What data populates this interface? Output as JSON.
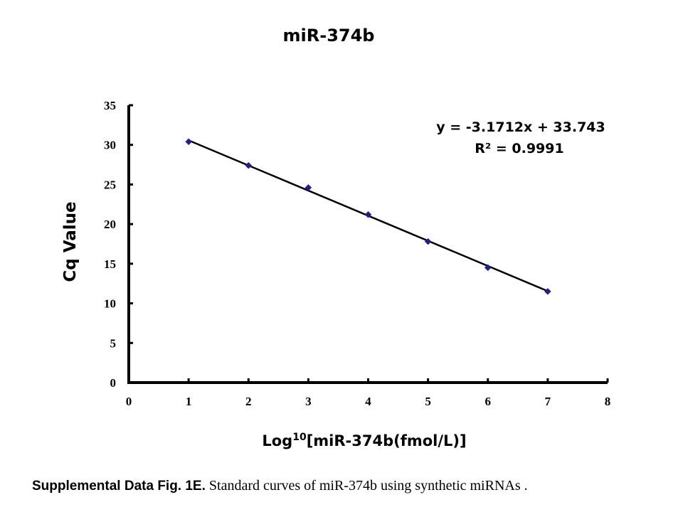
{
  "chart_data": {
    "type": "scatter",
    "title": "miR-374b",
    "xlabel_prefix": "Log",
    "xlabel_sup": "10",
    "xlabel_suffix": "[miR-374b(fmol/L)]",
    "ylabel": "Cq Value",
    "xlim": [
      0,
      8
    ],
    "ylim": [
      0,
      35
    ],
    "xticks": [
      "0",
      "1",
      "2",
      "3",
      "4",
      "5",
      "6",
      "7",
      "8"
    ],
    "yticks": [
      "0",
      "5",
      "10",
      "15",
      "20",
      "25",
      "30",
      "35"
    ],
    "grid": false,
    "series": [
      {
        "x": [
          1,
          2,
          3,
          4,
          5,
          6,
          7
        ],
        "y": [
          30.4,
          27.4,
          24.6,
          21.2,
          17.8,
          14.5,
          11.5
        ],
        "marker": "diamond",
        "color": "#1f1f8f"
      }
    ],
    "trendline": {
      "slope": -3.1712,
      "intercept": 33.743,
      "x_range": [
        1,
        7
      ],
      "color": "#000000"
    },
    "annotations": [
      "y = -3.1712x + 33.743",
      "R² = 0.9991"
    ]
  },
  "caption": {
    "bold": "Supplemental Data Fig. 1E.",
    "text": " Standard curves of miR-374b using synthetic miRNAs ."
  }
}
